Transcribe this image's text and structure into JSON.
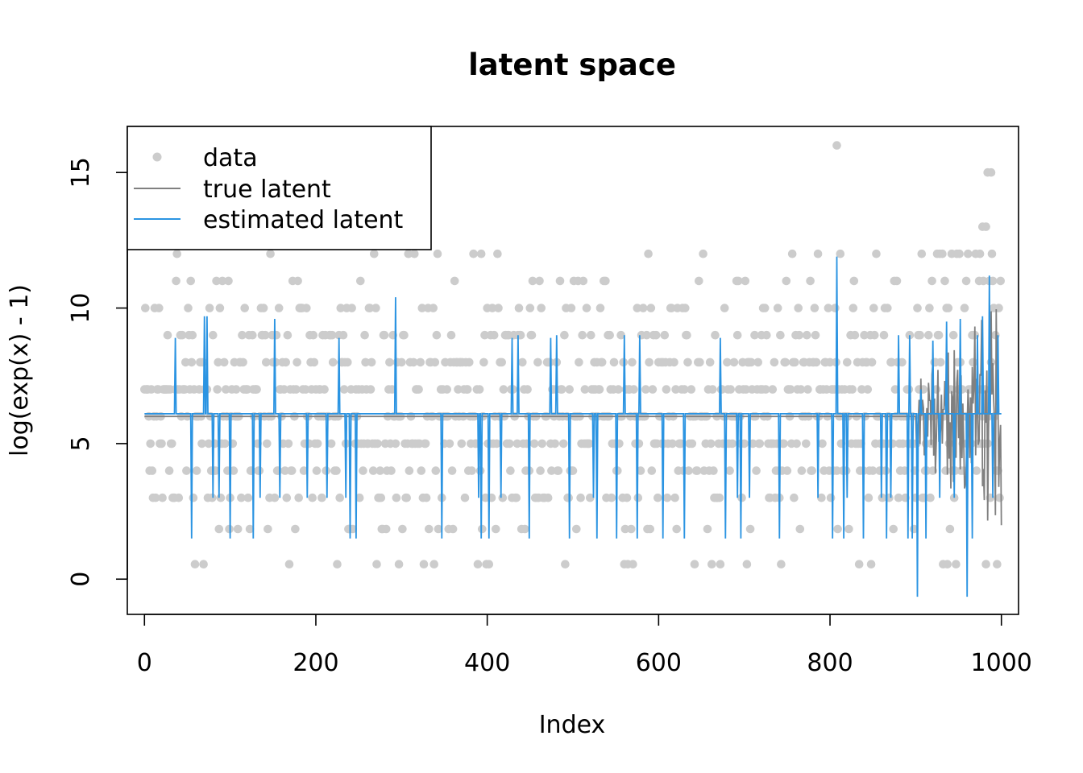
{
  "chart_data": {
    "type": "line",
    "title": "latent space",
    "xlabel": "Index",
    "ylabel": "log(exp(x) - 1)",
    "xlim": [
      -20,
      1020
    ],
    "ylim": [
      -1.3,
      16.7
    ],
    "xticks": [
      0,
      200,
      400,
      600,
      800,
      1000
    ],
    "yticks": [
      0,
      5,
      10,
      15
    ],
    "legend": {
      "position": "top-left",
      "entries": [
        {
          "label": "data",
          "style": "point",
          "color": "#cccccc"
        },
        {
          "label": "true latent",
          "style": "line",
          "color": "#808080"
        },
        {
          "label": "estimated latent",
          "style": "line",
          "color": "#2b94e2"
        }
      ]
    },
    "data_levels": [
      0.55,
      1.85,
      3.0,
      4.0,
      5.0,
      6.0,
      7.0,
      8.0,
      9.0,
      10.0,
      11.0,
      12.0,
      13.0,
      15.0,
      16.0
    ],
    "data_level_weights": [
      2,
      5,
      9,
      10,
      14,
      16,
      16,
      14,
      10,
      6,
      3,
      1.5,
      0.3,
      0.15,
      0.05
    ],
    "series": [
      {
        "name": "data",
        "kind": "points",
        "color": "#cccccc",
        "count": 1000,
        "notable_points": [
          [
            808,
            16.0
          ],
          [
            978,
            13.0
          ],
          [
            982,
            13.0
          ],
          [
            984,
            15.0
          ],
          [
            988,
            15.0
          ]
        ]
      },
      {
        "name": "true latent",
        "kind": "line",
        "color": "#808080",
        "baseline": 6.0,
        "baseline_range": [
          0,
          900
        ],
        "tail_range": [
          900,
          1000
        ],
        "tail_min": 1.2,
        "tail_max": 11.0
      },
      {
        "name": "estimated latent",
        "kind": "line",
        "color": "#2b94e2",
        "baseline": 6.1,
        "spikes": [
          [
            36,
            8.9
          ],
          [
            55,
            1.5
          ],
          [
            70,
            9.7
          ],
          [
            73,
            9.7
          ],
          [
            80,
            3.0
          ],
          [
            87,
            3.0
          ],
          [
            100,
            1.5
          ],
          [
            127,
            1.5
          ],
          [
            135,
            3.0
          ],
          [
            152,
            9.6
          ],
          [
            158,
            3.0
          ],
          [
            190,
            3.0
          ],
          [
            213,
            3.0
          ],
          [
            227,
            8.9
          ],
          [
            235,
            3.0
          ],
          [
            240,
            1.5
          ],
          [
            247,
            1.5
          ],
          [
            293,
            10.4
          ],
          [
            347,
            1.5
          ],
          [
            390,
            3.0
          ],
          [
            393,
            1.5
          ],
          [
            402,
            1.5
          ],
          [
            416,
            3.0
          ],
          [
            429,
            8.9
          ],
          [
            436,
            9.0
          ],
          [
            449,
            1.5
          ],
          [
            474,
            8.9
          ],
          [
            481,
            9.0
          ],
          [
            496,
            1.5
          ],
          [
            524,
            3.0
          ],
          [
            528,
            1.5
          ],
          [
            551,
            1.5
          ],
          [
            560,
            9.0
          ],
          [
            575,
            1.5
          ],
          [
            578,
            9.0
          ],
          [
            605,
            1.5
          ],
          [
            630,
            1.5
          ],
          [
            672,
            8.9
          ],
          [
            678,
            1.5
          ],
          [
            692,
            3.0
          ],
          [
            696,
            1.5
          ],
          [
            706,
            3.0
          ],
          [
            741,
            1.5
          ],
          [
            786,
            3.0
          ],
          [
            803,
            1.5
          ],
          [
            808,
            11.9
          ],
          [
            816,
            1.5
          ],
          [
            820,
            3.0
          ],
          [
            839,
            1.5
          ],
          [
            860,
            3.0
          ],
          [
            866,
            1.5
          ],
          [
            871,
            3.0
          ],
          [
            880,
            9.0
          ],
          [
            891,
            1.5
          ],
          [
            893,
            9.0
          ],
          [
            896,
            1.5
          ],
          [
            902,
            -0.65
          ],
          [
            906,
            7.0
          ],
          [
            912,
            1.5
          ],
          [
            920,
            8.8
          ],
          [
            928,
            3.0
          ],
          [
            936,
            9.5
          ],
          [
            945,
            3.0
          ],
          [
            952,
            9.6
          ],
          [
            960,
            -0.65
          ],
          [
            966,
            1.5
          ],
          [
            972,
            9.0
          ],
          [
            978,
            9.7
          ],
          [
            986,
            11.2
          ],
          [
            990,
            3.0
          ],
          [
            996,
            9.0
          ]
        ]
      }
    ]
  }
}
